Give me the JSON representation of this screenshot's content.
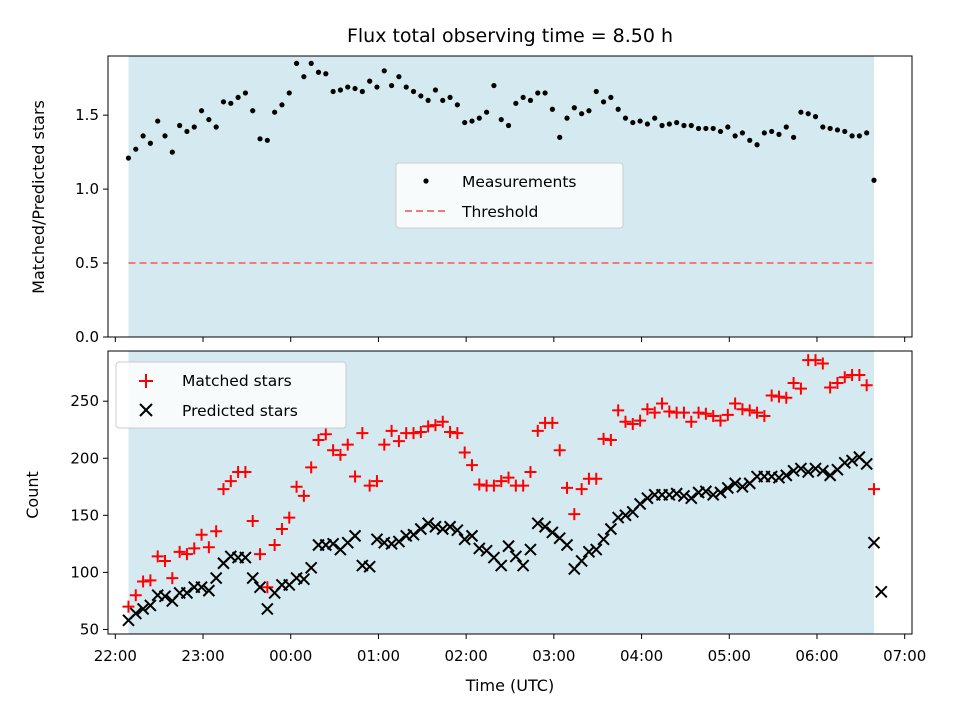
{
  "colors": {
    "observing_span": "#d4eaf0",
    "measurements": "#000000",
    "threshold": "#f07b78",
    "matched": "#ff0000",
    "predicted": "#000000"
  },
  "chart_data": [
    {
      "type": "scatter",
      "title": "Flux total observing time = 8.50 h",
      "xlabel": "",
      "ylabel": "Matched/Predicted stars",
      "xlim": [
        "21:55",
        "07:05"
      ],
      "ylim": [
        0,
        1.9
      ],
      "y_ticks": [
        0.0,
        0.5,
        1.0,
        1.5
      ],
      "y_tick_labels": [
        "0.0",
        "0.5",
        "1.0",
        "1.5"
      ],
      "shaded_span": [
        "22:09",
        "06:39"
      ],
      "legend_position": "center",
      "threshold": {
        "name": "Threshold",
        "value": 0.5,
        "style": "dashed"
      },
      "series": [
        {
          "name": "Measurements",
          "marker": "dot",
          "x": [
            "22:09",
            "22:14",
            "22:19",
            "22:24",
            "22:29",
            "22:34",
            "22:39",
            "22:44",
            "22:49",
            "22:54",
            "22:59",
            "23:04",
            "23:09",
            "23:14",
            "23:19",
            "23:24",
            "23:29",
            "23:34",
            "23:39",
            "23:44",
            "23:49",
            "23:54",
            "23:59",
            "00:04",
            "00:09",
            "00:14",
            "00:19",
            "00:24",
            "00:29",
            "00:34",
            "00:39",
            "00:44",
            "00:49",
            "00:54",
            "00:59",
            "01:04",
            "01:09",
            "01:14",
            "01:19",
            "01:24",
            "01:29",
            "01:34",
            "01:39",
            "01:44",
            "01:49",
            "01:54",
            "01:59",
            "02:04",
            "02:09",
            "02:14",
            "02:19",
            "02:24",
            "02:29",
            "02:34",
            "02:39",
            "02:44",
            "02:49",
            "02:54",
            "02:59",
            "03:04",
            "03:09",
            "03:14",
            "03:19",
            "03:24",
            "03:29",
            "03:34",
            "03:39",
            "03:44",
            "03:49",
            "03:54",
            "03:59",
            "04:04",
            "04:09",
            "04:14",
            "04:19",
            "04:24",
            "04:29",
            "04:34",
            "04:39",
            "04:44",
            "04:49",
            "04:54",
            "04:59",
            "05:04",
            "05:09",
            "05:14",
            "05:19",
            "05:24",
            "05:29",
            "05:34",
            "05:39",
            "05:44",
            "05:49",
            "05:54",
            "05:59",
            "06:04",
            "06:09",
            "06:14",
            "06:19",
            "06:24",
            "06:29",
            "06:34",
            "06:39"
          ],
          "y": [
            1.21,
            1.27,
            1.36,
            1.31,
            1.46,
            1.36,
            1.25,
            1.43,
            1.39,
            1.42,
            1.53,
            1.47,
            1.42,
            1.59,
            1.58,
            1.62,
            1.65,
            1.53,
            1.34,
            1.33,
            1.52,
            1.57,
            1.65,
            1.85,
            1.76,
            1.85,
            1.79,
            1.78,
            1.66,
            1.67,
            1.69,
            1.68,
            1.66,
            1.73,
            1.69,
            1.8,
            1.7,
            1.76,
            1.69,
            1.66,
            1.63,
            1.6,
            1.67,
            1.6,
            1.62,
            1.57,
            1.45,
            1.46,
            1.48,
            1.52,
            1.7,
            1.47,
            1.43,
            1.58,
            1.62,
            1.6,
            1.65,
            1.65,
            1.54,
            1.35,
            1.48,
            1.55,
            1.51,
            1.53,
            1.66,
            1.59,
            1.62,
            1.54,
            1.48,
            1.45,
            1.46,
            1.44,
            1.48,
            1.43,
            1.44,
            1.45,
            1.43,
            1.43,
            1.41,
            1.41,
            1.41,
            1.39,
            1.42,
            1.36,
            1.38,
            1.33,
            1.3,
            1.38,
            1.39,
            1.37,
            1.42,
            1.35,
            1.52,
            1.51,
            1.49,
            1.42,
            1.41,
            1.4,
            1.39,
            1.36,
            1.36,
            1.38,
            1.06
          ]
        }
      ]
    },
    {
      "type": "scatter",
      "title": "",
      "xlabel": "Time (UTC)",
      "ylabel": "Count",
      "xlim": [
        "21:55",
        "07:05"
      ],
      "ylim": [
        46,
        294
      ],
      "x_ticks": [
        "22:00",
        "23:00",
        "00:00",
        "01:00",
        "02:00",
        "03:00",
        "04:00",
        "05:00",
        "06:00",
        "07:00"
      ],
      "y_ticks": [
        50,
        100,
        150,
        200,
        250
      ],
      "y_tick_labels": [
        "50",
        "100",
        "150",
        "200",
        "250"
      ],
      "shaded_span": [
        "22:09",
        "06:39"
      ],
      "legend_position": "upper left",
      "series": [
        {
          "name": "Matched stars",
          "marker": "plus",
          "x": [
            "22:09",
            "22:14",
            "22:19",
            "22:24",
            "22:29",
            "22:34",
            "22:39",
            "22:44",
            "22:49",
            "22:54",
            "22:59",
            "23:04",
            "23:09",
            "23:14",
            "23:19",
            "23:24",
            "23:29",
            "23:34",
            "23:39",
            "23:44",
            "23:49",
            "23:54",
            "23:59",
            "00:04",
            "00:09",
            "00:14",
            "00:19",
            "00:24",
            "00:29",
            "00:34",
            "00:39",
            "00:44",
            "00:49",
            "00:54",
            "00:59",
            "01:04",
            "01:09",
            "01:14",
            "01:19",
            "01:24",
            "01:29",
            "01:34",
            "01:39",
            "01:44",
            "01:49",
            "01:54",
            "01:59",
            "02:04",
            "02:09",
            "02:14",
            "02:19",
            "02:24",
            "02:29",
            "02:34",
            "02:39",
            "02:44",
            "02:49",
            "02:54",
            "02:59",
            "03:04",
            "03:09",
            "03:14",
            "03:19",
            "03:24",
            "03:29",
            "03:34",
            "03:39",
            "03:44",
            "03:49",
            "03:54",
            "03:59",
            "04:04",
            "04:09",
            "04:14",
            "04:19",
            "04:24",
            "04:29",
            "04:34",
            "04:39",
            "04:44",
            "04:49",
            "04:54",
            "04:59",
            "05:04",
            "05:09",
            "05:14",
            "05:19",
            "05:24",
            "05:29",
            "05:34",
            "05:39",
            "05:44",
            "05:49",
            "05:54",
            "05:59",
            "06:04",
            "06:09",
            "06:14",
            "06:19",
            "06:24",
            "06:29",
            "06:34",
            "06:39"
          ],
          "y": [
            70,
            80,
            92,
            93,
            114,
            110,
            95,
            118,
            116,
            121,
            133,
            122,
            136,
            173,
            180,
            188,
            188,
            145,
            116,
            87,
            124,
            138,
            148,
            175,
            167,
            192,
            216,
            221,
            207,
            203,
            212,
            184,
            222,
            176,
            180,
            212,
            224,
            215,
            222,
            222,
            223,
            228,
            229,
            232,
            223,
            222,
            205,
            194,
            177,
            176,
            176,
            180,
            183,
            176,
            176,
            188,
            224,
            231,
            231,
            207,
            174,
            151,
            173,
            182,
            182,
            217,
            216,
            242,
            232,
            230,
            233,
            243,
            240,
            248,
            241,
            240,
            240,
            232,
            240,
            239,
            237,
            233,
            238,
            248,
            243,
            242,
            240,
            237,
            255,
            254,
            253,
            266,
            261,
            286,
            286,
            283,
            262,
            266,
            271,
            273,
            273,
            264,
            173
          ]
        },
        {
          "name": "Predicted stars",
          "marker": "x",
          "x": [
            "22:09",
            "22:14",
            "22:19",
            "22:24",
            "22:29",
            "22:34",
            "22:39",
            "22:44",
            "22:49",
            "22:54",
            "22:59",
            "23:04",
            "23:09",
            "23:14",
            "23:19",
            "23:24",
            "23:29",
            "23:34",
            "23:39",
            "23:44",
            "23:49",
            "23:54",
            "23:59",
            "00:04",
            "00:09",
            "00:14",
            "00:19",
            "00:24",
            "00:29",
            "00:34",
            "00:39",
            "00:44",
            "00:49",
            "00:54",
            "00:59",
            "01:04",
            "01:09",
            "01:14",
            "01:19",
            "01:24",
            "01:29",
            "01:34",
            "01:39",
            "01:44",
            "01:49",
            "01:54",
            "01:59",
            "02:04",
            "02:09",
            "02:14",
            "02:19",
            "02:24",
            "02:29",
            "02:34",
            "02:39",
            "02:44",
            "02:49",
            "02:54",
            "02:59",
            "03:04",
            "03:09",
            "03:14",
            "03:19",
            "03:24",
            "03:29",
            "03:34",
            "03:39",
            "03:44",
            "03:49",
            "03:54",
            "03:59",
            "04:04",
            "04:09",
            "04:14",
            "04:19",
            "04:24",
            "04:29",
            "04:34",
            "04:39",
            "04:44",
            "04:49",
            "04:54",
            "04:59",
            "05:04",
            "05:09",
            "05:14",
            "05:19",
            "05:24",
            "05:29",
            "05:34",
            "05:39",
            "05:44",
            "05:49",
            "05:54",
            "05:59",
            "06:04",
            "06:09",
            "06:14",
            "06:19",
            "06:24",
            "06:29",
            "06:34",
            "06:39",
            "06:44"
          ],
          "y": [
            58,
            64,
            68,
            71,
            80,
            79,
            75,
            82,
            82,
            87,
            87,
            84,
            95,
            108,
            114,
            113,
            113,
            95,
            87,
            68,
            82,
            89,
            89,
            95,
            94,
            104,
            124,
            124,
            125,
            120,
            126,
            132,
            106,
            105,
            129,
            126,
            125,
            127,
            132,
            133,
            138,
            143,
            140,
            138,
            140,
            137,
            129,
            132,
            121,
            119,
            113,
            106,
            123,
            114,
            106,
            120,
            143,
            140,
            135,
            130,
            124,
            103,
            110,
            118,
            120,
            129,
            138,
            148,
            150,
            153,
            160,
            165,
            168,
            168,
            168,
            169,
            167,
            165,
            170,
            171,
            168,
            170,
            174,
            178,
            175,
            178,
            184,
            184,
            184,
            183,
            185,
            189,
            191,
            188,
            191,
            189,
            185,
            190,
            196,
            198,
            201,
            195,
            126,
            83
          ]
        }
      ]
    }
  ]
}
